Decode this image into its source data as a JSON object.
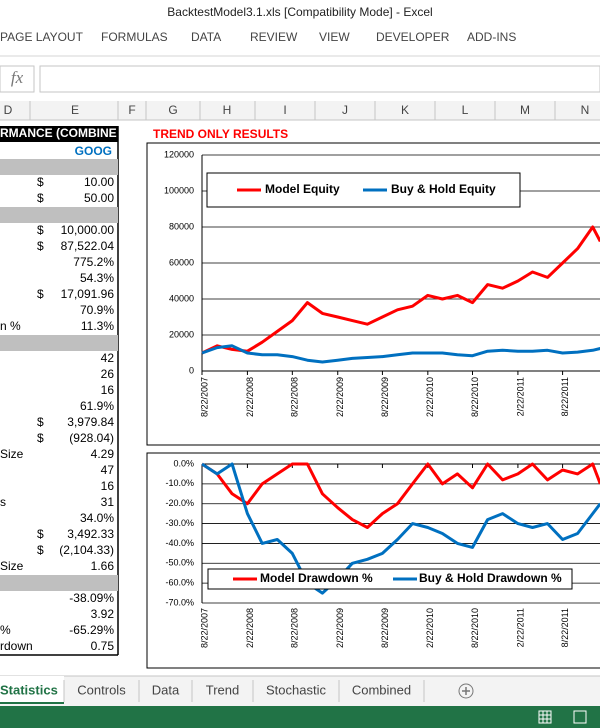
{
  "window_title": "BacktestModel3.1.xls  [Compatibility Mode] - Excel",
  "ribbon_tabs": [
    "PAGE LAYOUT",
    "FORMULAS",
    "DATA",
    "REVIEW",
    "VIEW",
    "DEVELOPER",
    "ADD-INS"
  ],
  "formula_bar": {
    "fx": "fx"
  },
  "columns": [
    "D",
    "E",
    "F",
    "G",
    "H",
    "I",
    "J",
    "K",
    "L",
    "M",
    "N"
  ],
  "table": {
    "header": "RMANCE (COMBINE",
    "ticker": "GOOG",
    "rows": [
      {
        "shaded": true
      },
      {
        "currency": "$",
        "value": "10.00"
      },
      {
        "currency": "$",
        "value": "50.00"
      },
      {
        "shaded": true
      },
      {
        "currency": "$",
        "value": "10,000.00"
      },
      {
        "currency": "$",
        "value": "87,522.04"
      },
      {
        "value": "775.2%"
      },
      {
        "value": "54.3%"
      },
      {
        "currency": "$",
        "value": "17,091.96"
      },
      {
        "value": "70.9%"
      },
      {
        "label": "n %",
        "value": "11.3%"
      },
      {
        "shaded": true
      },
      {
        "value": "42"
      },
      {
        "value": "26"
      },
      {
        "value": "16"
      },
      {
        "value": "61.9%"
      },
      {
        "currency": "$",
        "value": "3,979.84"
      },
      {
        "currency": "$",
        "value": "(928.04)"
      },
      {
        "label": "Size",
        "value": "4.29"
      },
      {
        "value": "47"
      },
      {
        "value": "16"
      },
      {
        "label": "s",
        "value": "31"
      },
      {
        "value": "34.0%"
      },
      {
        "currency": "$",
        "value": "3,492.33"
      },
      {
        "currency": "$",
        "value": "(2,104.33)"
      },
      {
        "label": "Size",
        "value": "1.66"
      },
      {
        "shaded": true
      },
      {
        "value": "-38.09%"
      },
      {
        "value": "3.92"
      },
      {
        "label": "%",
        "value": "-65.29%"
      },
      {
        "label": "rdown",
        "value": "0.75"
      }
    ]
  },
  "chart_title": "TREND ONLY RESULTS",
  "chart_data": [
    {
      "type": "line",
      "x": [
        "8/22/2007",
        "10/22/2007",
        "12/22/2007",
        "2/22/2008",
        "4/22/2008",
        "6/22/2008",
        "8/22/2008",
        "10/22/2008",
        "12/22/2008",
        "2/22/2009",
        "4/22/2009",
        "6/22/2009",
        "8/22/2009",
        "10/22/2009",
        "12/22/2009",
        "2/22/2010",
        "4/22/2010",
        "6/22/2010",
        "8/22/2010",
        "10/22/2010",
        "12/22/2010",
        "2/22/2011",
        "4/22/2011",
        "6/22/2011",
        "8/22/2011",
        "10/22/2011",
        "12/22/2011",
        "1/22/2012"
      ],
      "xlim": [
        "8/22/2007",
        "2/22/2012"
      ],
      "xticks": [
        "8/22/2007",
        "2/22/2008",
        "8/22/2008",
        "2/22/2009",
        "8/22/2009",
        "2/22/2010",
        "8/22/2010",
        "2/22/2011",
        "8/22/2011"
      ],
      "ylim": [
        0,
        120000
      ],
      "yticks": [
        0,
        20000,
        40000,
        60000,
        80000,
        100000,
        120000
      ],
      "grid": true,
      "legend": "top-left",
      "series": [
        {
          "name": "Model Equity",
          "color": "#ff0000",
          "values": [
            10000,
            14000,
            12000,
            11000,
            16000,
            22000,
            28000,
            38000,
            32000,
            30000,
            28000,
            26000,
            30000,
            34000,
            36000,
            42000,
            40000,
            42000,
            38000,
            48000,
            46000,
            50000,
            55000,
            52000,
            60000,
            68000,
            80000,
            72000
          ]
        },
        {
          "name": "Buy & Hold Equity",
          "color": "#0070c0",
          "values": [
            10000,
            13000,
            14000,
            10000,
            9000,
            9000,
            8000,
            6000,
            5000,
            6000,
            7000,
            7500,
            8000,
            9000,
            10000,
            10000,
            10000,
            9000,
            8500,
            11000,
            11500,
            11000,
            11000,
            11500,
            10000,
            10500,
            11500,
            12500
          ]
        }
      ]
    },
    {
      "type": "line",
      "x": [
        "8/22/2007",
        "10/22/2007",
        "12/22/2007",
        "2/22/2008",
        "4/22/2008",
        "6/22/2008",
        "8/22/2008",
        "10/22/2008",
        "12/22/2008",
        "2/22/2009",
        "4/22/2009",
        "6/22/2009",
        "8/22/2009",
        "10/22/2009",
        "12/22/2009",
        "2/22/2010",
        "4/22/2010",
        "6/22/2010",
        "8/22/2010",
        "10/22/2010",
        "12/22/2010",
        "2/22/2011",
        "4/22/2011",
        "6/22/2011",
        "8/22/2011",
        "10/22/2011",
        "12/22/2011",
        "1/22/2012"
      ],
      "xlim": [
        "8/22/2007",
        "2/22/2012"
      ],
      "xticks": [
        "8/22/2007",
        "2/22/2008",
        "8/22/2008",
        "2/22/2009",
        "8/22/2009",
        "2/22/2010",
        "8/22/2010",
        "2/22/2011",
        "8/22/2011"
      ],
      "ylim": [
        -70,
        0
      ],
      "yticks": [
        {
          "value": 0,
          "label": "0.0%"
        },
        {
          "value": -10,
          "label": "-10.0%"
        },
        {
          "value": -20,
          "label": "-20.0%"
        },
        {
          "value": -30,
          "label": "-30.0%"
        },
        {
          "value": -40,
          "label": "-40.0%"
        },
        {
          "value": -50,
          "label": "-50.0%"
        },
        {
          "value": -60,
          "label": "-60.0%"
        },
        {
          "value": -70,
          "label": "-70.0%"
        }
      ],
      "grid": true,
      "legend": "bottom",
      "series": [
        {
          "name": "Model Drawdown %",
          "color": "#ff0000",
          "values": [
            0,
            -5,
            -15,
            -20,
            -10,
            -5,
            0,
            0,
            -15,
            -22,
            -28,
            -32,
            -25,
            -20,
            -10,
            0,
            -10,
            -5,
            -12,
            0,
            -8,
            -5,
            0,
            -8,
            -3,
            -5,
            0,
            -10
          ]
        },
        {
          "name": "Buy & Hold Drawdown %",
          "color": "#0070c0",
          "values": [
            0,
            -5,
            0,
            -25,
            -40,
            -38,
            -45,
            -60,
            -65,
            -58,
            -50,
            -48,
            -45,
            -38,
            -30,
            -32,
            -35,
            -40,
            -42,
            -28,
            -25,
            -30,
            -32,
            -30,
            -38,
            -35,
            -25,
            -20
          ]
        }
      ]
    }
  ],
  "sheet_tabs": {
    "tabs": [
      "Statistics",
      "Controls",
      "Data",
      "Trend",
      "Stochastic",
      "Combined"
    ],
    "active": 0
  }
}
